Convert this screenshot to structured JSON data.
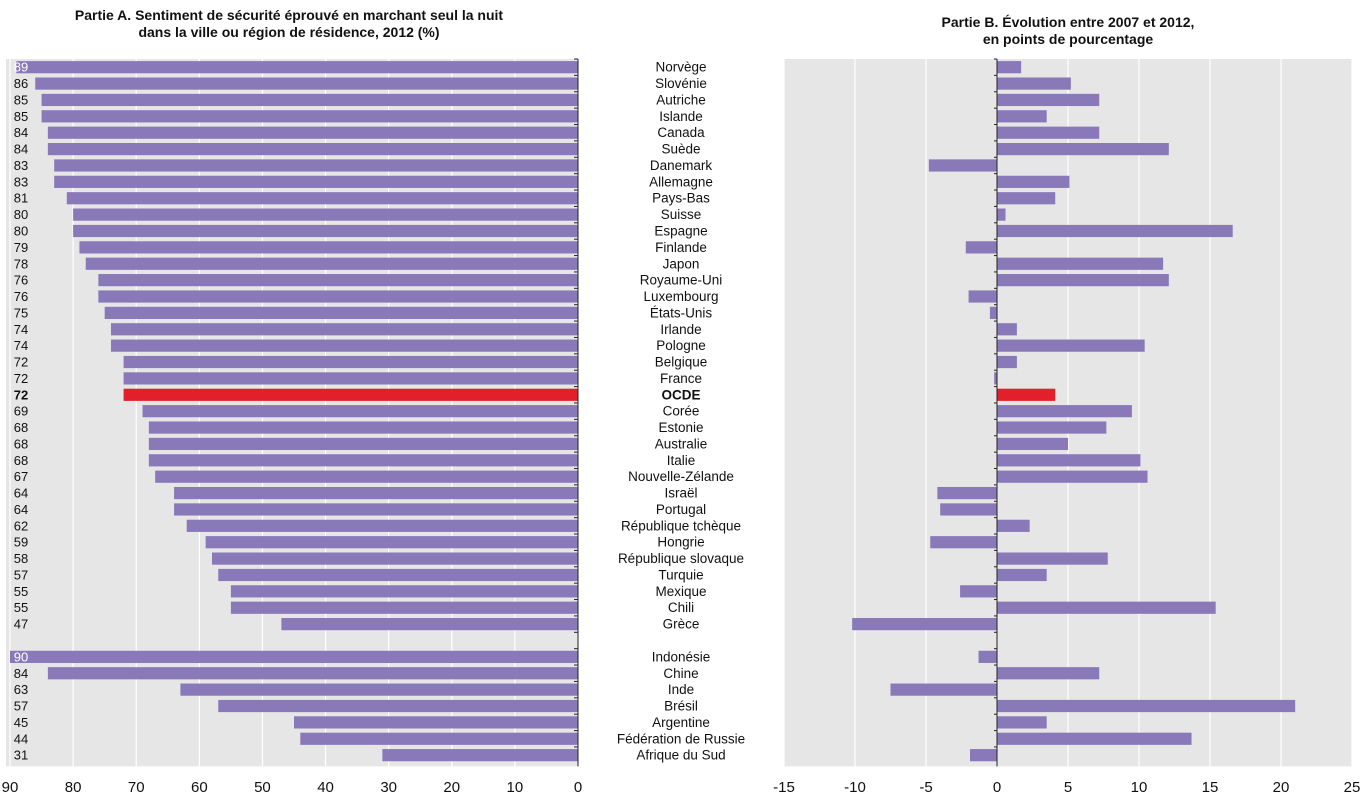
{
  "titles": {
    "panel_a_line1": "Partie A. Sentiment de sécurité éprouvé en marchant seul la nuit",
    "panel_a_line2": "dans la ville ou région de résidence, 2012 (%)",
    "panel_b_line1": "Partie B. Évolution entre 2007 et 2012,",
    "panel_b_line2": "en points de pourcentage"
  },
  "colors": {
    "bar": "#8a79b8",
    "highlight": "#e2202c",
    "grid_bg": "#e6e6e6",
    "grid_line": "#ffffff"
  },
  "chart_data": [
    {
      "type": "bar",
      "orientation": "horizontal",
      "title": "Partie A. Sentiment de sécurité éprouvé en marchant seul la nuit dans la ville ou région de résidence, 2012 (%)",
      "x_reversed": true,
      "xlim": [
        0,
        90
      ],
      "xticks": [
        90,
        80,
        70,
        60,
        50,
        40,
        30,
        20,
        10,
        0
      ],
      "categories": [
        "Norvège",
        "Slovénie",
        "Autriche",
        "Islande",
        "Canada",
        "Suède",
        "Danemark",
        "Allemagne",
        "Pays-Bas",
        "Suisse",
        "Espagne",
        "Finlande",
        "Japon",
        "Royaume-Uni",
        "Luxembourg",
        "États-Unis",
        "Irlande",
        "Pologne",
        "Belgique",
        "France",
        "OCDE",
        "Corée",
        "Estonie",
        "Australie",
        "Italie",
        "Nouvelle-Zélande",
        "Israël",
        "Portugal",
        "République tchèque",
        "Hongrie",
        "République slovaque",
        "Turquie",
        "Mexique",
        "Chili",
        "Grèce",
        "",
        "Indonésie",
        "Chine",
        "Inde",
        "Brésil",
        "Argentine",
        "Fédération de Russie",
        "Afrique du Sud"
      ],
      "values": [
        89,
        86,
        85,
        85,
        84,
        84,
        83,
        83,
        81,
        80,
        80,
        79,
        78,
        76,
        76,
        75,
        74,
        74,
        72,
        72,
        72,
        69,
        68,
        68,
        68,
        67,
        64,
        64,
        62,
        59,
        58,
        57,
        55,
        55,
        47,
        null,
        90,
        84,
        63,
        57,
        45,
        44,
        31
      ],
      "highlight": [
        "OCDE"
      ],
      "grid": true
    },
    {
      "type": "bar",
      "orientation": "horizontal",
      "title": "Partie B. Évolution entre 2007 et 2012, en points de pourcentage",
      "xlim": [
        -15,
        25
      ],
      "xticks": [
        -15,
        -10,
        -5,
        0,
        5,
        10,
        15,
        20,
        25
      ],
      "categories": [
        "Norvège",
        "Slovénie",
        "Autriche",
        "Islande",
        "Canada",
        "Suède",
        "Danemark",
        "Allemagne",
        "Pays-Bas",
        "Suisse",
        "Espagne",
        "Finlande",
        "Japon",
        "Royaume-Uni",
        "Luxembourg",
        "États-Unis",
        "Irlande",
        "Pologne",
        "Belgique",
        "France",
        "OCDE",
        "Corée",
        "Estonie",
        "Australie",
        "Italie",
        "Nouvelle-Zélande",
        "Israël",
        "Portugal",
        "République tchèque",
        "Hongrie",
        "République slovaque",
        "Turquie",
        "Mexique",
        "Chili",
        "Grèce",
        "",
        "Indonésie",
        "Chine",
        "Inde",
        "Brésil",
        "Argentine",
        "Fédération de Russie",
        "Afrique du Sud"
      ],
      "values": [
        1.7,
        5.2,
        7.2,
        3.5,
        7.2,
        12.1,
        -4.8,
        5.1,
        4.1,
        0.6,
        16.6,
        -2.2,
        11.7,
        12.1,
        -2.0,
        -0.5,
        1.4,
        10.4,
        1.4,
        -0.2,
        4.1,
        9.5,
        7.7,
        5.0,
        10.1,
        10.6,
        -4.2,
        -4.0,
        2.3,
        -4.7,
        7.8,
        3.5,
        -2.6,
        15.4,
        -10.2,
        null,
        -1.3,
        7.2,
        -7.5,
        21.0,
        3.5,
        13.7,
        -1.9
      ],
      "highlight": [
        "OCDE"
      ],
      "grid": true
    }
  ]
}
